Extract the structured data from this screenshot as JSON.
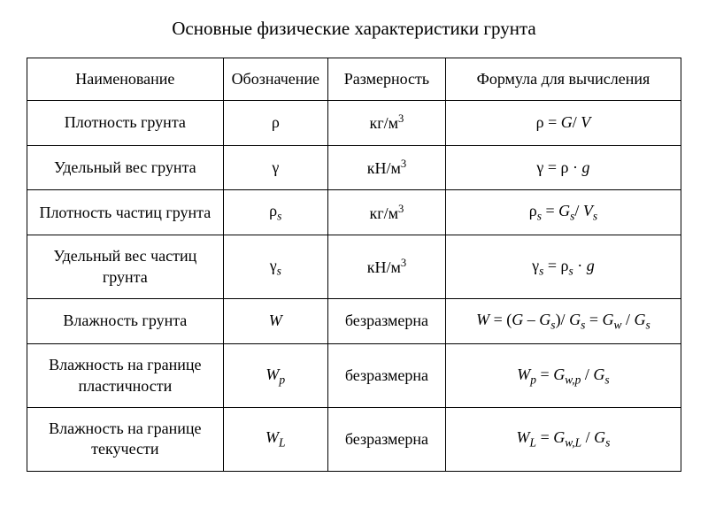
{
  "title": "Основные физические характеристики грунта",
  "table": {
    "columns": [
      "Наименование",
      "Обозначение",
      "Размерность",
      "Формула для вычисления"
    ],
    "column_widths": [
      "30%",
      "16%",
      "18%",
      "36%"
    ],
    "rows": [
      {
        "name": "Плотность грунта",
        "symbol_html": "<span class='sym'>ρ</span>",
        "dimension_html": "кг/м<sup>3</sup>",
        "formula_html": "<span class='sym'>ρ</span> = <span class='ital'>G</span>/ <span class='ital'>V</span>"
      },
      {
        "name": "Удельный вес грунта",
        "symbol_html": "<span class='sym'>γ</span>",
        "dimension_html": "кН/м<sup>3</sup>",
        "formula_html": "<span class='sym'>γ</span> = <span class='sym'>ρ</span> · <span class='ital'>g</span>"
      },
      {
        "name": "Плотность частиц грунта",
        "symbol_html": "<span class='sym'>ρ</span><sub>s</sub>",
        "dimension_html": "кг/м<sup>3</sup>",
        "formula_html": "<span class='sym'>ρ</span><sub>s</sub> = <span class='ital'>G</span><sub>s</sub>/ <span class='ital'>V</span><sub>s</sub>"
      },
      {
        "name": "Удельный вес частиц грунта",
        "symbol_html": "<span class='sym'>γ</span><sub>s</sub>",
        "dimension_html": "кН/м<sup>3</sup>",
        "formula_html": "<span class='sym'>γ</span><sub>s</sub> = <span class='sym'>ρ</span><sub>s</sub> · <span class='ital'>g</span>"
      },
      {
        "name": "Влажность грунта",
        "symbol_html": "<span class='ital'>W</span>",
        "dimension_html": "безразмерна",
        "formula_html": "<span class='ital'>W</span> = (<span class='ital'>G</span> – <span class='ital'>G</span><sub>s</sub>)/ <span class='ital'>G</span><sub>s</sub> = <span class='ital'>G</span><sub>w</sub> / <span class='ital'>G</span><sub>s</sub>"
      },
      {
        "name": "Влажность на границе пластичности",
        "symbol_html": "<span class='ital'>W</span><sub>p</sub>",
        "dimension_html": "безразмерна",
        "formula_html": "<span class='ital'>W</span><sub>p</sub> = <span class='ital'>G</span><sub>w,p</sub> / <span class='ital'>G</span><sub>s</sub>"
      },
      {
        "name": "Влажность на границе текучести",
        "symbol_html": "<span class='ital'>W</span><sub>L</sub>",
        "dimension_html": "безразмерна",
        "formula_html": "<span class='ital'>W</span><sub>L</sub> = <span class='ital'>G</span><sub>w,L</sub> / <span class='ital'>G</span><sub>s</sub>"
      }
    ],
    "border_color": "#000000",
    "background_color": "#ffffff",
    "font_family": "Times New Roman",
    "title_fontsize": 21,
    "cell_fontsize": 18
  }
}
